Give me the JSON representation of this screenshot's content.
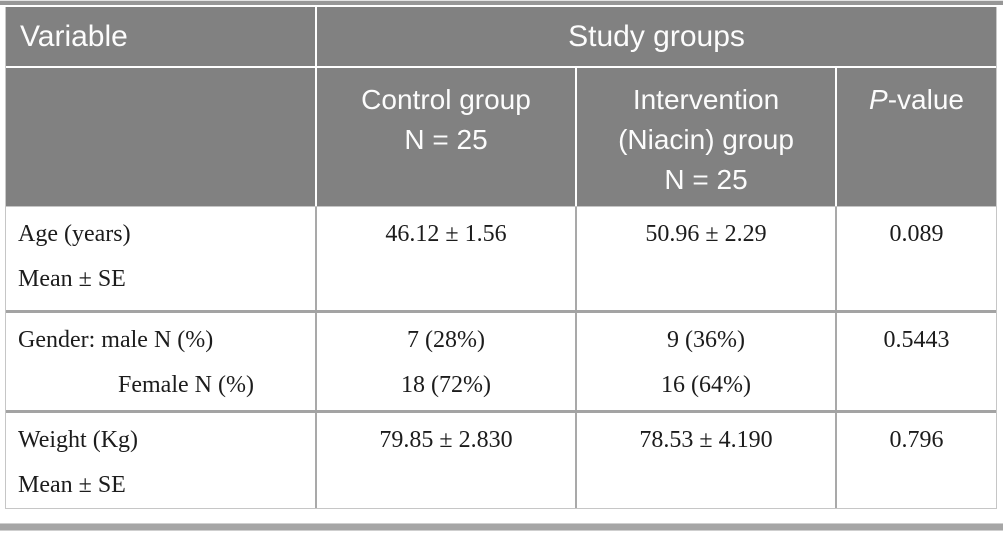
{
  "header": {
    "variable": "Variable",
    "study_groups": "Study groups",
    "control_group": {
      "line1": "Control group",
      "line2": "N = 25"
    },
    "intervention_group": {
      "line1": "Intervention",
      "line2": "(Niacin) group",
      "line3": "N = 25"
    },
    "p_value": {
      "symbol": "P",
      "suffix": "-value"
    }
  },
  "rows": [
    {
      "variable": {
        "line1": "Age (years)",
        "line2": "Mean ± SE"
      },
      "control": {
        "line1": "46.12 ± 1.56"
      },
      "intervention": {
        "line1": "50.96 ± 2.29"
      },
      "p_value": "0.089"
    },
    {
      "variable": {
        "line1": "Gender: male N (%)",
        "line2": "Female N (%)"
      },
      "control": {
        "line1": "7 (28%)",
        "line2": "18 (72%)"
      },
      "intervention": {
        "line1": "9 (36%)",
        "line2": "16 (64%)"
      },
      "p_value": "0.5443"
    },
    {
      "variable": {
        "line1": "Weight (Kg)",
        "line2": "Mean ± SE"
      },
      "control": {
        "line1": "79.85 ± 2.830"
      },
      "intervention": {
        "line1": "78.53 ± 4.190"
      },
      "p_value": "0.796"
    }
  ],
  "colors": {
    "header_bg": "#818181",
    "header_text": "#fcfcfc",
    "top_rule": "#979797",
    "bottom_rule": "#a6a6a6",
    "grid_line": "#a9a9a9",
    "row_separator": "#a3a3a3",
    "body_text": "#1c1c1c"
  }
}
